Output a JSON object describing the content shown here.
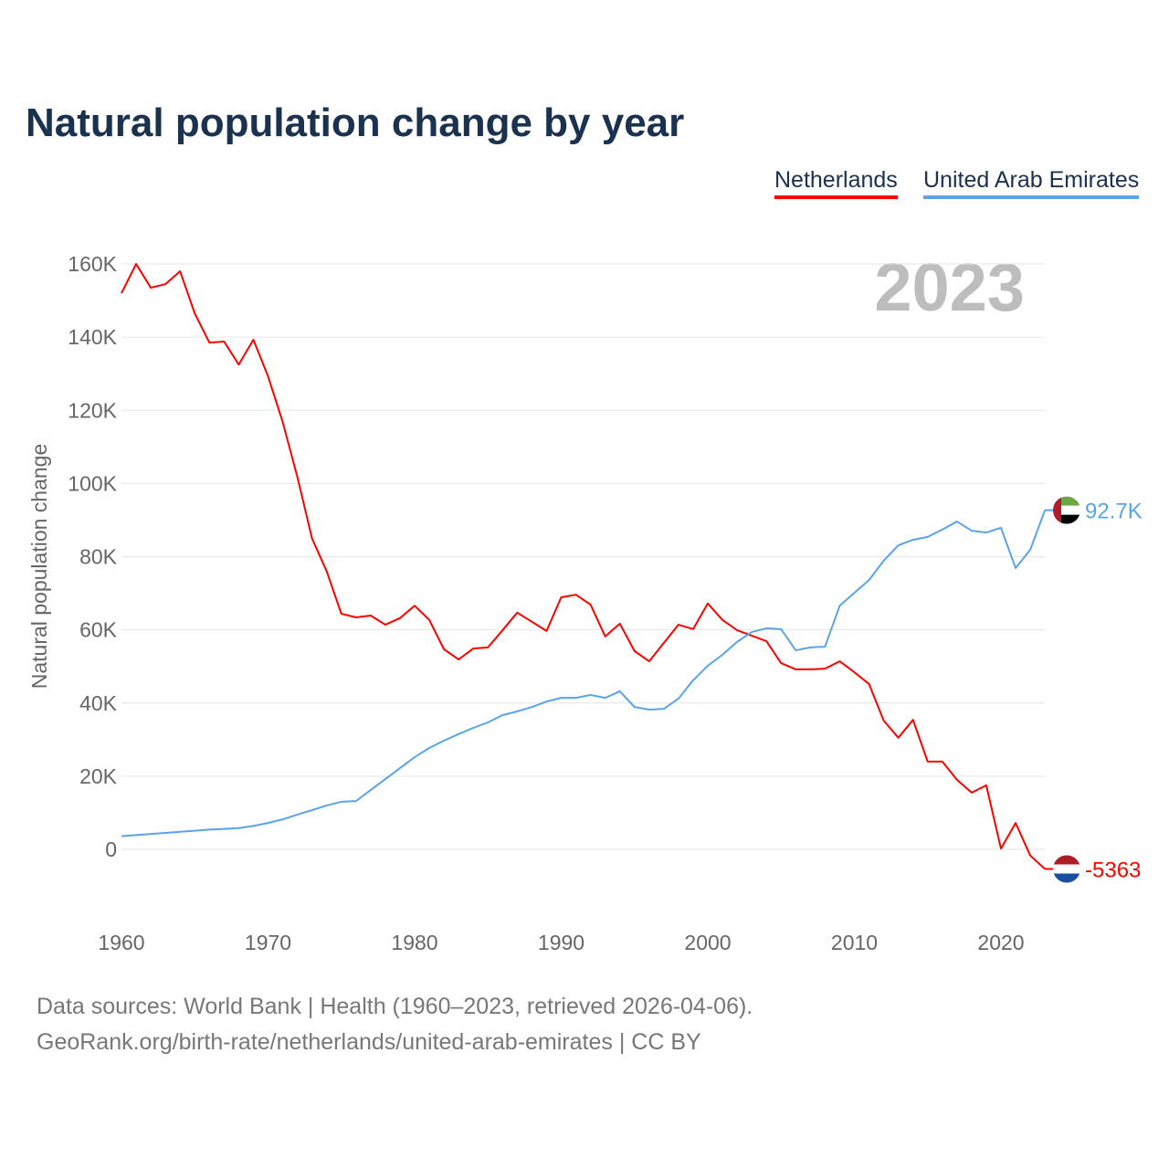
{
  "title": "Natural population change by year",
  "legend": [
    "Netherlands",
    "United Arab Emirates"
  ],
  "year_watermark": "2023",
  "end_labels": {
    "nl": "-5363",
    "ae": "92.7K"
  },
  "footer": {
    "line1": "Data sources: World Bank | Health (1960–2023, retrieved 2026-04-06).",
    "line2": "GeoRank.org/birth-rate/netherlands/united-arab-emirates | CC BY"
  },
  "colors": {
    "nl": "#ff0000",
    "ae": "#5ba3e8"
  },
  "chart_data": {
    "type": "line",
    "title": "Natural population change by year",
    "xlabel": "",
    "ylabel": "Natural population change",
    "xlim": [
      1960,
      2023
    ],
    "ylim": [
      -20000,
      160000
    ],
    "x_ticks": [
      1960,
      1970,
      1980,
      1990,
      2000,
      2010,
      2020
    ],
    "y_ticks": [
      0,
      20000,
      40000,
      60000,
      80000,
      100000,
      120000,
      140000,
      160000
    ],
    "y_tick_labels": [
      "0",
      "20K",
      "40K",
      "60K",
      "80K",
      "100K",
      "120K",
      "140K",
      "160K"
    ],
    "grid": true,
    "legend_position": "top-right",
    "x": [
      1960,
      1961,
      1962,
      1963,
      1964,
      1965,
      1966,
      1967,
      1968,
      1969,
      1970,
      1971,
      1972,
      1973,
      1974,
      1975,
      1976,
      1977,
      1978,
      1979,
      1980,
      1981,
      1982,
      1983,
      1984,
      1985,
      1986,
      1987,
      1988,
      1989,
      1990,
      1991,
      1992,
      1993,
      1994,
      1995,
      1996,
      1997,
      1998,
      1999,
      2000,
      2001,
      2002,
      2003,
      2004,
      2005,
      2006,
      2007,
      2008,
      2009,
      2010,
      2011,
      2012,
      2013,
      2014,
      2015,
      2016,
      2017,
      2018,
      2019,
      2020,
      2021,
      2022,
      2023
    ],
    "series": [
      {
        "name": "Netherlands",
        "values": [
          152000,
          160000,
          153500,
          154500,
          158000,
          146500,
          138500,
          138800,
          132500,
          139300,
          129300,
          116800,
          101800,
          85000,
          76000,
          64400,
          63400,
          63900,
          61400,
          63200,
          66600,
          62700,
          54700,
          51900,
          54900,
          55200,
          59900,
          64700,
          62200,
          59700,
          68900,
          69600,
          66900,
          58200,
          61700,
          54200,
          51400,
          56400,
          61400,
          60200,
          67200,
          62700,
          59900,
          58400,
          56900,
          50900,
          49200,
          49200,
          49400,
          51400,
          48400,
          45200,
          35200,
          30500,
          35400,
          24000,
          24000,
          19000,
          15500,
          17500,
          200,
          7200,
          -1700,
          -5363
        ]
      },
      {
        "name": "United Arab Emirates",
        "values": [
          3600,
          3900,
          4200,
          4500,
          4800,
          5100,
          5400,
          5600,
          5800,
          6400,
          7200,
          8200,
          9500,
          10700,
          12000,
          13000,
          13200,
          16200,
          19200,
          22200,
          25200,
          27700,
          29700,
          31500,
          33200,
          34700,
          36700,
          37700,
          38900,
          40400,
          41400,
          41400,
          42200,
          41400,
          43200,
          38900,
          38200,
          38400,
          41200,
          46200,
          50200,
          53200,
          56700,
          59400,
          60400,
          60200,
          54400,
          55200,
          55400,
          66600,
          70100,
          73600,
          78900,
          83100,
          84600,
          85400,
          87400,
          89600,
          87100,
          86600,
          87900,
          76900,
          81900,
          92700
        ]
      }
    ]
  }
}
